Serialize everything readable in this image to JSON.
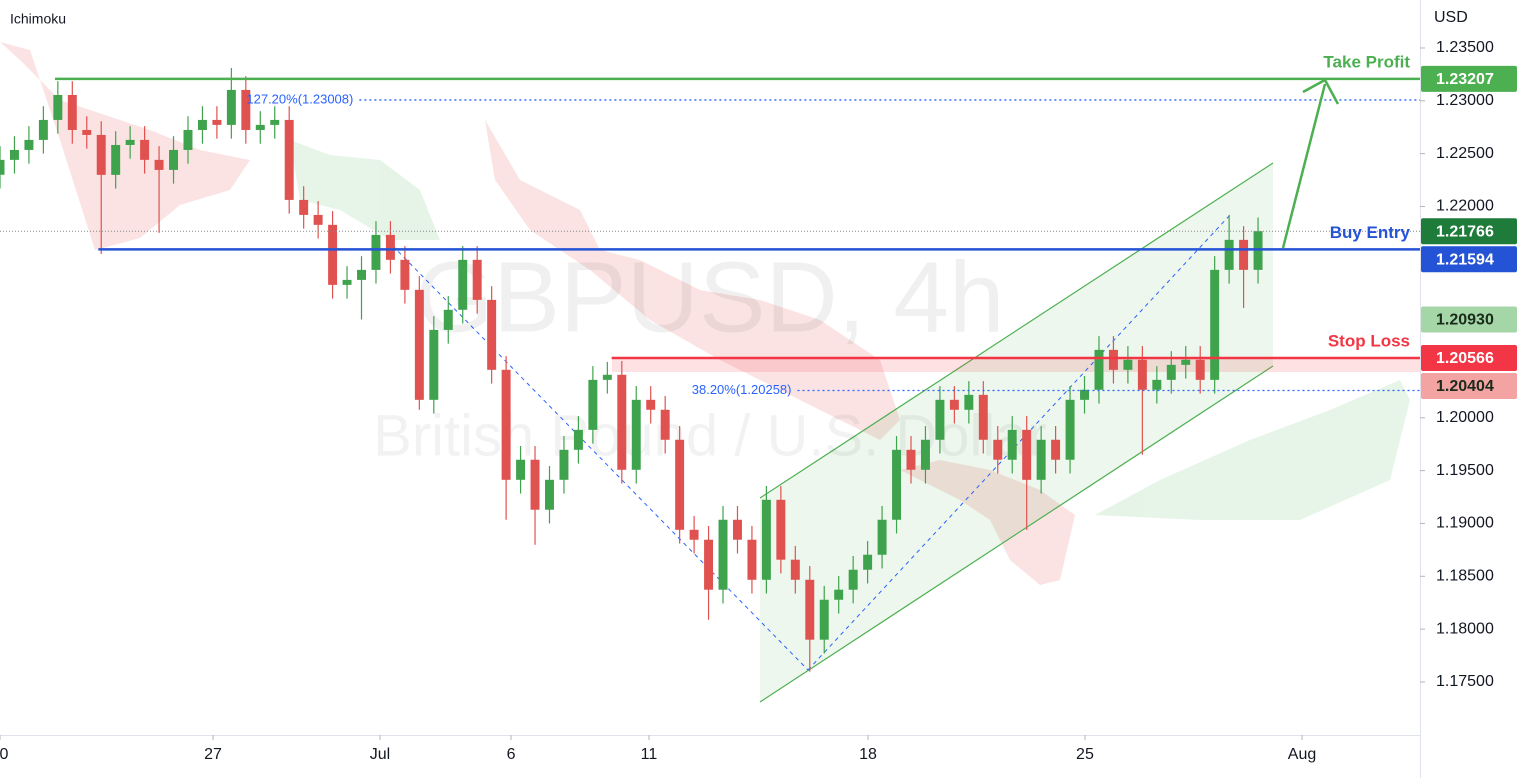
{
  "chart_data": {
    "type": "candlestick",
    "title": "GBPUSD, 4h",
    "subtitle": "British Pound / U.S. Dollar",
    "indicator": "Ichimoku",
    "y_axis_label": "USD",
    "up_color": "#3fa34d",
    "down_color": "#e0524f",
    "xlim": [
      0,
      98.2
    ],
    "ylim": [
      1.16998,
      1.23954
    ],
    "xticks": [
      0,
      {
        "value": 14.73,
        "label": "27"
      },
      {
        "value": 26.28,
        "label": "Jul"
      },
      {
        "value": 35.34,
        "label": "6"
      },
      {
        "value": 44.88,
        "label": "11"
      },
      {
        "value": 60.03,
        "label": "18"
      },
      {
        "value": 75.03,
        "label": "25"
      },
      {
        "value": 90.04,
        "label": "Aug"
      }
    ],
    "yticks": [
      {
        "value": 1.175,
        "label": "1.17500"
      },
      {
        "value": 1.18,
        "label": "1.18000"
      },
      {
        "value": 1.185,
        "label": "1.18500"
      },
      {
        "value": 1.19,
        "label": "1.19000"
      },
      {
        "value": 1.195,
        "label": "1.19500"
      },
      {
        "value": 1.2,
        "label": "1.20000"
      },
      {
        "value": 1.22,
        "label": "1.22000"
      },
      {
        "value": 1.225,
        "label": "1.22500"
      },
      {
        "value": 1.23,
        "label": "1.23000"
      },
      {
        "value": 1.235,
        "label": "1.23500"
      }
    ],
    "x": [
      0,
      1,
      2,
      3,
      4,
      5,
      6,
      7,
      8,
      9,
      10,
      11,
      12,
      13,
      14,
      15,
      16,
      17,
      18,
      19,
      20,
      21,
      22,
      23,
      24,
      25,
      26,
      27,
      28,
      29,
      30,
      31,
      32,
      33,
      34,
      35,
      36,
      37,
      38,
      39,
      40,
      41,
      42,
      43,
      44,
      45,
      46,
      47,
      48,
      49,
      50,
      51,
      52,
      53,
      54,
      55,
      56,
      57,
      58,
      59,
      60,
      61,
      62,
      63,
      64,
      65,
      66,
      67,
      68,
      69,
      70,
      71,
      72,
      73,
      74,
      75,
      76,
      77,
      78,
      79,
      80,
      81,
      82,
      83,
      84,
      85,
      86,
      87
    ],
    "open": [
      1.223,
      1.22441,
      1.22535,
      1.2263,
      1.22819,
      1.23055,
      1.22724,
      1.22677,
      1.22299,
      1.22582,
      1.2263,
      1.22441,
      1.22346,
      1.22535,
      1.22724,
      1.22819,
      1.22772,
      1.23103,
      1.22724,
      1.22772,
      1.22819,
      1.22062,
      1.2192,
      1.21826,
      1.21258,
      1.21305,
      1.214,
      1.21731,
      1.21495,
      1.21211,
      1.2017,
      1.20832,
      1.21022,
      1.21495,
      1.21116,
      1.20454,
      1.19413,
      1.19603,
      1.1913,
      1.19413,
      1.19697,
      1.19886,
      1.20359,
      1.20407,
      1.19508,
      1.2017,
      1.20076,
      1.19792,
      1.1894,
      1.18846,
      1.18373,
      1.19035,
      1.18846,
      1.18467,
      1.19224,
      1.18657,
      1.18467,
      1.179,
      1.18278,
      1.18373,
      1.18562,
      1.18704,
      1.19035,
      1.19697,
      1.19508,
      1.19792,
      1.2017,
      1.20076,
      1.20217,
      1.19792,
      1.19603,
      1.19886,
      1.19413,
      1.19792,
      1.19603,
      1.2017,
      1.20265,
      1.20643,
      1.20454,
      1.20549,
      1.20265,
      1.20359,
      1.20501,
      1.20549,
      1.20359,
      1.214,
      1.21684,
      1.214
    ],
    "high": [
      1.22571,
      1.22665,
      1.2276,
      1.22949,
      1.23185,
      1.23185,
      1.22854,
      1.22807,
      1.22712,
      1.2276,
      1.2276,
      1.22571,
      1.22665,
      1.22854,
      1.22949,
      1.22949,
      1.2331,
      1.23233,
      1.22902,
      1.22949,
      1.22949,
      1.22192,
      1.2205,
      1.21956,
      1.21435,
      1.2153,
      1.21861,
      1.21861,
      1.21625,
      1.21341,
      1.20962,
      1.21152,
      1.21625,
      1.21625,
      1.21246,
      1.20584,
      1.19733,
      1.19733,
      1.19543,
      1.19827,
      1.20016,
      1.20489,
      1.20529,
      1.20537,
      1.203,
      1.203,
      1.20206,
      1.19922,
      1.1907,
      1.18976,
      1.19165,
      1.19165,
      1.18976,
      1.19354,
      1.19354,
      1.18787,
      1.18597,
      1.18408,
      1.18503,
      1.18692,
      1.18834,
      1.19165,
      1.19827,
      1.19827,
      1.19922,
      1.203,
      1.203,
      1.20347,
      1.20347,
      1.19922,
      1.20016,
      1.20016,
      1.19922,
      1.19922,
      1.203,
      1.20395,
      1.20773,
      1.20773,
      1.20679,
      1.20679,
      1.20489,
      1.20631,
      1.20679,
      1.20679,
      1.2153,
      1.2192,
      1.21814,
      1.21896
    ],
    "low": [
      1.2217,
      1.22311,
      1.22405,
      1.225,
      1.22689,
      1.22594,
      1.22547,
      1.2155,
      1.22169,
      1.22452,
      1.22311,
      1.2175,
      1.22216,
      1.22405,
      1.22594,
      1.22642,
      1.22642,
      1.22594,
      1.22594,
      1.22642,
      1.21932,
      1.2179,
      1.21696,
      1.21128,
      1.21128,
      1.2093,
      1.2127,
      1.21365,
      1.21081,
      1.20076,
      1.2004,
      1.20702,
      1.20892,
      1.20986,
      1.20324,
      1.19035,
      1.19283,
      1.18798,
      1.19,
      1.19283,
      1.19567,
      1.19756,
      1.20229,
      1.19378,
      1.19378,
      1.19946,
      1.19662,
      1.1881,
      1.18716,
      1.18089,
      1.18243,
      1.18716,
      1.18337,
      1.18337,
      1.18527,
      1.18337,
      1.17597,
      1.1777,
      1.18148,
      1.18243,
      1.18432,
      1.18574,
      1.18905,
      1.19378,
      1.19378,
      1.19662,
      1.19946,
      1.19946,
      1.19662,
      1.19473,
      1.19473,
      1.1894,
      1.19283,
      1.19473,
      1.19473,
      1.2004,
      1.20135,
      1.20324,
      1.20324,
      1.1965,
      1.20135,
      1.20229,
      1.20371,
      1.20229,
      1.20229,
      1.2127,
      1.2104,
      1.2127
    ],
    "close": [
      1.22441,
      1.22535,
      1.2263,
      1.22819,
      1.23055,
      1.22724,
      1.22677,
      1.22299,
      1.22582,
      1.2263,
      1.22441,
      1.22346,
      1.22535,
      1.22724,
      1.22819,
      1.22772,
      1.23103,
      1.22724,
      1.22772,
      1.22819,
      1.22062,
      1.2192,
      1.21826,
      1.21258,
      1.21305,
      1.214,
      1.21731,
      1.21495,
      1.21211,
      1.2017,
      1.20832,
      1.21022,
      1.21495,
      1.21116,
      1.20454,
      1.19413,
      1.19603,
      1.1913,
      1.19413,
      1.19697,
      1.19886,
      1.20359,
      1.20407,
      1.19508,
      1.2017,
      1.20076,
      1.19792,
      1.1894,
      1.18846,
      1.18373,
      1.19035,
      1.18846,
      1.18467,
      1.19224,
      1.18657,
      1.18467,
      1.179,
      1.18278,
      1.18373,
      1.18562,
      1.18704,
      1.19035,
      1.19697,
      1.19508,
      1.19792,
      1.2017,
      1.20076,
      1.20217,
      1.19792,
      1.19603,
      1.19886,
      1.19413,
      1.19792,
      1.19603,
      1.2017,
      1.20265,
      1.20643,
      1.20454,
      1.20549,
      1.20265,
      1.20359,
      1.20501,
      1.20549,
      1.20359,
      1.214,
      1.21684,
      1.214,
      1.21766
    ],
    "levels": [
      {
        "label": "Take Profit",
        "value": 1.23207,
        "value_label": "1.23207",
        "color": "#4caf50",
        "line": "solid",
        "start": 3.8
      },
      {
        "value": 1.21766,
        "value_label": "1.21766",
        "color": "#1e7b3a",
        "line": "dotted",
        "start": 0
      },
      {
        "label": "Buy Entry",
        "value": 1.21594,
        "value_label": "1.21594",
        "color": "#2453d6",
        "line": "solid",
        "start": 6.8
      },
      {
        "value": 1.2093,
        "value_label": "1.20930",
        "color": "#a5d6a7"
      },
      {
        "label": "Stop Loss",
        "value": 1.20566,
        "value_label": "1.20566",
        "color": "#f23645",
        "line": "solid",
        "start": 42.3
      },
      {
        "value": 1.20404,
        "value_label": "1.20404",
        "color": "#f4a3a3"
      }
    ],
    "fibs": [
      {
        "label": "127.20%(1.23008)",
        "value": 1.23008,
        "start": 16.9,
        "color": "#2962ff"
      },
      {
        "label": "38.20%(1.20258)",
        "value": 1.20258,
        "start": 47.7,
        "color": "#2962ff"
      }
    ]
  }
}
